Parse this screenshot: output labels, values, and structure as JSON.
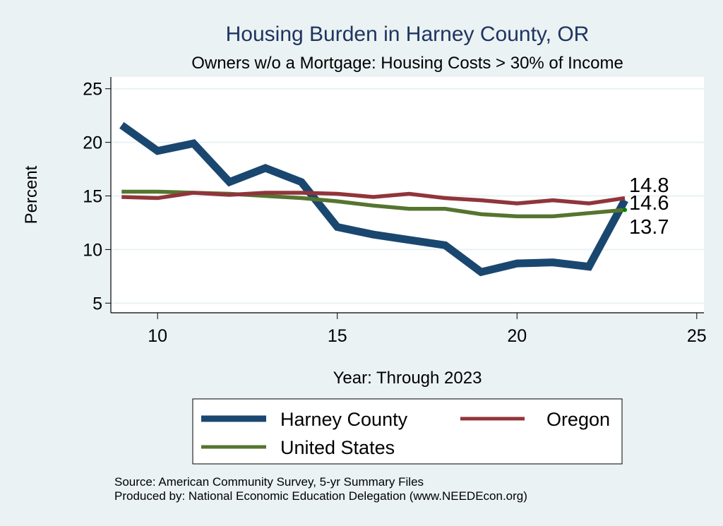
{
  "chart_data": {
    "type": "line",
    "title": "Housing Burden in Harney County, OR",
    "subtitle": "Owners w/o a Mortgage: Housing Costs > 30% of Income",
    "xlabel": "Year: Through 2023",
    "ylabel": "Percent",
    "xlim": [
      8.7,
      25.2
    ],
    "ylim": [
      4.1,
      26.1
    ],
    "xticks": [
      10,
      15,
      20,
      25
    ],
    "yticks": [
      5,
      10,
      15,
      20,
      25
    ],
    "grid": true,
    "x": [
      9,
      10,
      11,
      12,
      13,
      14,
      15,
      16,
      17,
      18,
      19,
      20,
      21,
      22,
      23
    ],
    "series": [
      {
        "name": "Harney County",
        "color": "#1a476f",
        "values": [
          21.6,
          19.2,
          19.9,
          16.3,
          17.6,
          16.3,
          12.1,
          11.4,
          10.9,
          10.4,
          7.9,
          8.7,
          8.8,
          8.4,
          14.6
        ],
        "end_label": "14.6"
      },
      {
        "name": "Oregon",
        "color": "#90353b",
        "values": [
          14.9,
          14.8,
          15.3,
          15.1,
          15.3,
          15.3,
          15.2,
          14.9,
          15.2,
          14.8,
          14.6,
          14.3,
          14.6,
          14.3,
          14.8
        ],
        "end_label": "14.8"
      },
      {
        "name": "United States",
        "color": "#55752f",
        "values": [
          15.4,
          15.4,
          15.3,
          15.2,
          15.0,
          14.8,
          14.5,
          14.1,
          13.8,
          13.8,
          13.3,
          13.1,
          13.1,
          13.4,
          13.7
        ],
        "end_label": "13.7"
      }
    ],
    "legend": {
      "placement": "bottom",
      "entries": [
        "Harney County",
        "Oregon",
        "United States"
      ]
    },
    "notes": [
      "Source: American Community Survey, 5-yr Summary Files",
      "Produced by: National Economic Education Delegation (www.NEEDEcon.org)"
    ]
  }
}
